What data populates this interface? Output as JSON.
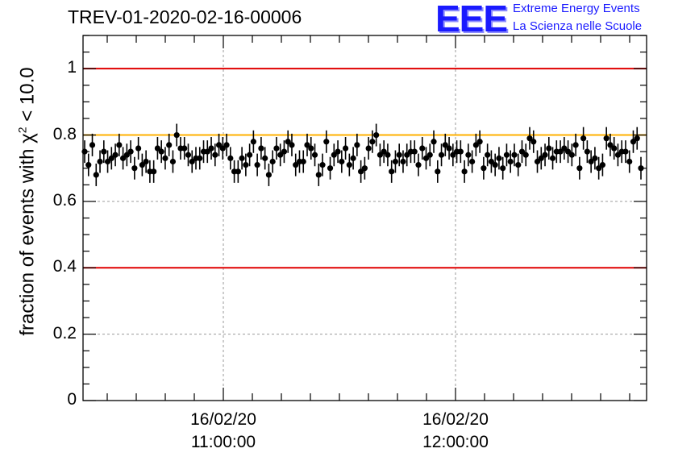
{
  "title": "TREV-01-2020-02-16-00006",
  "logo": {
    "mark": "EEE",
    "line1": "Extreme Energy Events",
    "line2": "La Scienza nelle Scuole"
  },
  "colors": {
    "reference_line": "#e00000",
    "threshold_line": "#ffb000",
    "points": "#000000",
    "logo": "#1a1aff"
  },
  "chart_data": {
    "type": "scatter",
    "title": "TREV-01-2020-02-16-00006",
    "xlabel": "",
    "ylabel_parts": {
      "before": "fraction of events with χ",
      "sup": "2",
      "after": " < 10.0"
    },
    "ylim": [
      0,
      1.1
    ],
    "yticks": [
      "0",
      "0.2",
      "0.4",
      "0.6",
      "0.8",
      "1"
    ],
    "xticks": [
      {
        "date": "16/02/20",
        "time": "11:00:00"
      },
      {
        "date": "16/02/20",
        "time": "12:00:00"
      }
    ],
    "grid": true,
    "reference_lines": [
      {
        "y": 1.0,
        "color": "#e00000"
      },
      {
        "y": 0.8,
        "color": "#ffb000"
      },
      {
        "y": 0.4,
        "color": "#e00000"
      }
    ],
    "series": [
      {
        "y": [
          0.75,
          0.71,
          0.77,
          0.68,
          0.72,
          0.75,
          0.72,
          0.73,
          0.74,
          0.77,
          0.73,
          0.74,
          0.75,
          0.7,
          0.76,
          0.71,
          0.72,
          0.69,
          0.69,
          0.76,
          0.75,
          0.73,
          0.77,
          0.72,
          0.8,
          0.76,
          0.76,
          0.74,
          0.72,
          0.73,
          0.73,
          0.75,
          0.75,
          0.76,
          0.74,
          0.77,
          0.76,
          0.77,
          0.73,
          0.69,
          0.69,
          0.73,
          0.71,
          0.74,
          0.78,
          0.71,
          0.76,
          0.73,
          0.68,
          0.72,
          0.76,
          0.74,
          0.75,
          0.78,
          0.77,
          0.71,
          0.72,
          0.72,
          0.77,
          0.76,
          0.74,
          0.68,
          0.71,
          0.78,
          0.7,
          0.74,
          0.75,
          0.72,
          0.76,
          0.71,
          0.73,
          0.77,
          0.69,
          0.7,
          0.76,
          0.78,
          0.8,
          0.74,
          0.75,
          0.74,
          0.69,
          0.72,
          0.74,
          0.72,
          0.74,
          0.75,
          0.75,
          0.71,
          0.76,
          0.73,
          0.74,
          0.78,
          0.69,
          0.74,
          0.77,
          0.76,
          0.74,
          0.75,
          0.75,
          0.69,
          0.74,
          0.72,
          0.77,
          0.78,
          0.7,
          0.74,
          0.72,
          0.71,
          0.73,
          0.7,
          0.74,
          0.72,
          0.74,
          0.71,
          0.75,
          0.74,
          0.79,
          0.78,
          0.72,
          0.73,
          0.74,
          0.76,
          0.73,
          0.75,
          0.75,
          0.76,
          0.75,
          0.74,
          0.77,
          0.7,
          0.79,
          0.75,
          0.72,
          0.73,
          0.7,
          0.71,
          0.79,
          0.77,
          0.76,
          0.74,
          0.75,
          0.75,
          0.72,
          0.78,
          0.79,
          0.7
        ]
      }
    ]
  }
}
